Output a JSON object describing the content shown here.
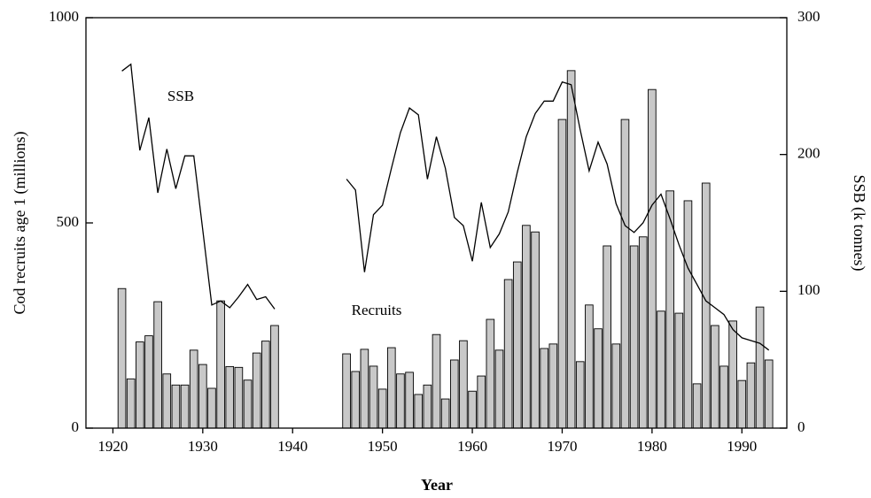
{
  "chart_data": {
    "type": "bar",
    "xlabel": "Year",
    "ylabel": "Cod recruits age 1 (millions)",
    "y2label": "SSB (k tonnes)",
    "annotations": [
      "SSB",
      "Recruits"
    ],
    "x": [
      1921,
      1922,
      1923,
      1924,
      1925,
      1926,
      1927,
      1928,
      1929,
      1930,
      1931,
      1932,
      1933,
      1934,
      1935,
      1936,
      1937,
      1938,
      1939,
      1940,
      1941,
      1942,
      1943,
      1944,
      1945,
      1946,
      1947,
      1948,
      1949,
      1950,
      1951,
      1952,
      1953,
      1954,
      1955,
      1956,
      1957,
      1958,
      1959,
      1960,
      1961,
      1962,
      1963,
      1964,
      1965,
      1966,
      1967,
      1968,
      1969,
      1970,
      1971,
      1972,
      1973,
      1974,
      1975,
      1976,
      1977,
      1978,
      1979,
      1980,
      1981,
      1982,
      1983,
      1984,
      1985,
      1986,
      1987,
      1988,
      1989,
      1990,
      1991,
      1992,
      1993
    ],
    "series": [
      {
        "name": "Recruits",
        "type": "bar",
        "color": "#c8c8c8",
        "values": [
          340,
          120,
          210,
          225,
          308,
          132,
          105,
          105,
          190,
          155,
          97,
          310,
          150,
          148,
          117,
          183,
          212,
          250,
          null,
          null,
          null,
          null,
          null,
          null,
          null,
          181,
          138,
          192,
          151,
          95,
          196,
          132,
          136,
          82,
          105,
          228,
          71,
          166,
          213,
          90,
          127,
          265,
          190,
          362,
          405,
          494,
          478,
          194,
          205,
          752,
          871,
          162,
          300,
          242,
          444,
          205,
          752,
          444,
          466,
          825,
          285,
          578,
          280,
          554,
          108,
          597,
          250,
          151,
          261,
          116,
          159,
          295,
          166
        ]
      },
      {
        "name": "SSB",
        "type": "line",
        "axis": "y2",
        "color": "#000000",
        "values": [
          261,
          266,
          203,
          227,
          172,
          204,
          175,
          199,
          199,
          145,
          90,
          93,
          88,
          96,
          105,
          94,
          96,
          87,
          null,
          null,
          null,
          null,
          null,
          null,
          null,
          182,
          174,
          114,
          156,
          163,
          190,
          216,
          234,
          229,
          182,
          213,
          190,
          154,
          148,
          122,
          165,
          132,
          142,
          158,
          187,
          213,
          230,
          239,
          239,
          253,
          251,
          218,
          188,
          209,
          193,
          164,
          148,
          143,
          150,
          163,
          171,
          153,
          134,
          117,
          105,
          93,
          88,
          83,
          72,
          66,
          64,
          62,
          57
        ]
      }
    ],
    "xlim": [
      1917,
      1995
    ],
    "xticks": [
      1920,
      1930,
      1940,
      1950,
      1960,
      1970,
      1980,
      1990
    ],
    "ylim": [
      0,
      1000
    ],
    "yticks": [
      0,
      500,
      1000
    ],
    "y2lim": [
      0,
      300
    ],
    "y2ticks": [
      0,
      100,
      200,
      300
    ]
  }
}
